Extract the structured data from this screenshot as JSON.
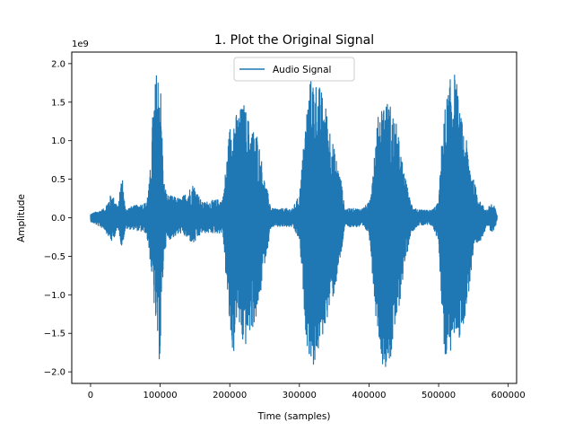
{
  "chart_data": {
    "type": "line",
    "title": "1. Plot the Original Signal",
    "xlabel": "Time (samples)",
    "ylabel": "Amplitude",
    "y_offset_label": "1e9",
    "xlim": [
      -27000,
      612000
    ],
    "ylim": [
      -2.15,
      2.15
    ],
    "x_ticks": [
      0,
      100000,
      200000,
      300000,
      400000,
      500000,
      600000
    ],
    "x_tick_labels": [
      "0",
      "100000",
      "200000",
      "300000",
      "400000",
      "500000",
      "600000"
    ],
    "y_ticks": [
      -2.0,
      -1.5,
      -1.0,
      -0.5,
      0.0,
      0.5,
      1.0,
      1.5,
      2.0
    ],
    "y_tick_labels": [
      "−2.0",
      "−1.5",
      "−1.0",
      "−0.5",
      "0.0",
      "0.5",
      "1.0",
      "1.5",
      "2.0"
    ],
    "legend_position": "top-center",
    "grid": false,
    "series": [
      {
        "name": "Audio Signal",
        "color": "#1f77b4",
        "sample_count": 584000,
        "envelope": {
          "x": [
            0,
            20000,
            30000,
            40000,
            45000,
            50000,
            60000,
            80000,
            85000,
            90000,
            95000,
            100000,
            105000,
            110000,
            130000,
            148000,
            160000,
            190000,
            200000,
            205000,
            210000,
            220000,
            230000,
            240000,
            250000,
            260000,
            290000,
            300000,
            310000,
            315000,
            320000,
            330000,
            340000,
            350000,
            360000,
            365000,
            390000,
            400000,
            410000,
            415000,
            420000,
            430000,
            440000,
            450000,
            460000,
            470000,
            490000,
            500000,
            505000,
            510000,
            520000,
            525000,
            530000,
            540000,
            550000,
            560000,
            570000,
            575000,
            580000,
            584000
          ],
          "max": [
            0.05,
            0.12,
            0.32,
            0.15,
            0.6,
            0.12,
            0.15,
            0.2,
            0.5,
            1.5,
            1.95,
            1.95,
            0.5,
            0.3,
            0.25,
            0.45,
            0.2,
            0.25,
            1.2,
            1.4,
            1.35,
            1.5,
            1.2,
            1.1,
            0.5,
            0.12,
            0.12,
            0.3,
            1.4,
            1.8,
            1.85,
            1.7,
            1.4,
            0.9,
            0.5,
            0.12,
            0.12,
            0.2,
            1.1,
            1.45,
            1.55,
            1.5,
            1.2,
            0.6,
            0.2,
            0.1,
            0.1,
            0.2,
            1.1,
            1.5,
            1.95,
            1.85,
            1.4,
            1.0,
            0.5,
            0.2,
            0.1,
            0.2,
            0.15,
            0.05
          ],
          "min": [
            -0.05,
            -0.15,
            -0.32,
            -0.15,
            -0.4,
            -0.15,
            -0.15,
            -0.2,
            -0.5,
            -1.0,
            -1.6,
            -1.95,
            -0.5,
            -0.3,
            -0.2,
            -0.35,
            -0.2,
            -0.2,
            -1.5,
            -1.85,
            -1.3,
            -1.75,
            -1.5,
            -1.3,
            -0.6,
            -0.12,
            -0.12,
            -0.3,
            -1.6,
            -1.85,
            -1.95,
            -1.7,
            -1.3,
            -1.0,
            -0.5,
            -0.12,
            -0.12,
            -0.2,
            -1.3,
            -1.6,
            -1.95,
            -1.9,
            -1.4,
            -0.7,
            -0.2,
            -0.1,
            -0.1,
            -0.3,
            -1.3,
            -1.95,
            -1.7,
            -1.5,
            -1.6,
            -1.2,
            -0.5,
            -0.3,
            -0.1,
            -0.2,
            -0.15,
            -0.05
          ]
        }
      }
    ]
  }
}
